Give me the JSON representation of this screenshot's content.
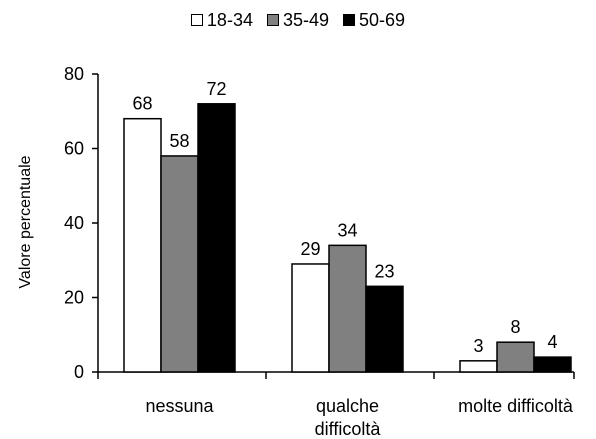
{
  "chart_data": {
    "type": "bar",
    "title": "",
    "xlabel": "",
    "ylabel": "Valore percentuale",
    "ylim": [
      0,
      80
    ],
    "yticks": [
      0,
      20,
      40,
      60,
      80
    ],
    "grid": false,
    "legend_position": "top",
    "categories": [
      "nessuna",
      "qualche difficoltà",
      "molte difficoltà"
    ],
    "category_lines": [
      [
        "nessuna"
      ],
      [
        "qualche",
        "difficoltà"
      ],
      [
        "molte difficoltà"
      ]
    ],
    "series": [
      {
        "name": "18-34",
        "color": "#ffffff",
        "values": [
          68,
          29,
          3
        ]
      },
      {
        "name": "35-49",
        "color": "#808080",
        "values": [
          58,
          34,
          8
        ]
      },
      {
        "name": "50-69",
        "color": "#000000",
        "values": [
          72,
          23,
          4
        ]
      }
    ]
  }
}
